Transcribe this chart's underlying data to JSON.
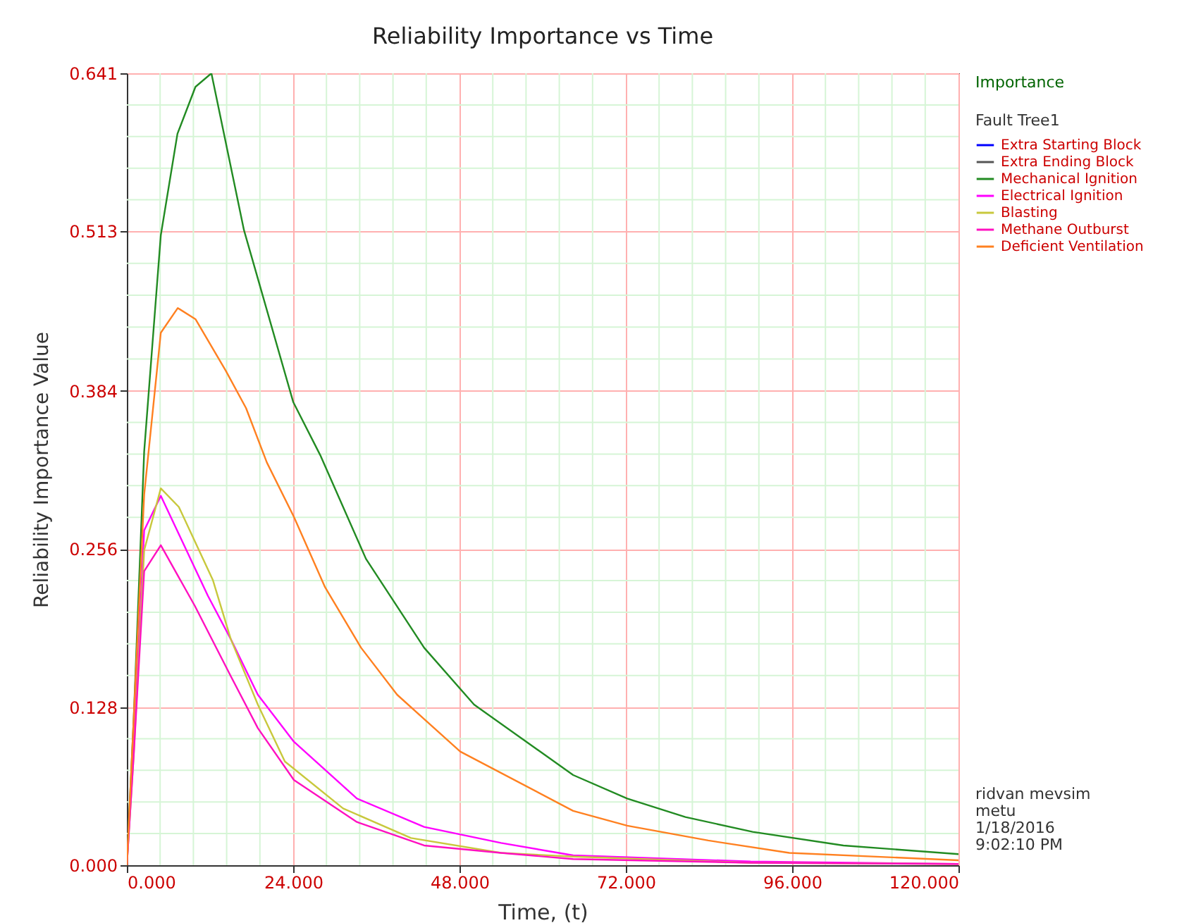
{
  "chart_data": {
    "type": "line",
    "title": "Reliability Importance vs Time",
    "xlabel": "Time, (t)",
    "ylabel": "Reliability Importance Value",
    "legend_title": "Fault Tree1",
    "legend": "right",
    "grid": true,
    "line_style": "solid",
    "annotations": [
      "Importance",
      "ridvan mevsim",
      "metu",
      "1/18/2016",
      "9:02:10 PM"
    ],
    "xlim": [
      0,
      120
    ],
    "xticks": [
      {
        "value": 0,
        "label": "0.000"
      },
      {
        "value": 24,
        "label": "24.000"
      },
      {
        "value": 48,
        "label": "48.000"
      },
      {
        "value": 72,
        "label": "72.000"
      },
      {
        "value": 96,
        "label": "96.000"
      },
      {
        "value": 120,
        "label": "120.000"
      }
    ],
    "ylim": [
      0,
      0.641
    ],
    "yticks": [
      {
        "value": 0,
        "label": "0.000"
      },
      {
        "value": 0.128,
        "label": "0.128"
      },
      {
        "value": 0.256,
        "label": "0.256"
      },
      {
        "value": 0.384,
        "label": "0.384"
      },
      {
        "value": 0.513,
        "label": "0.513"
      },
      {
        "value": 0.641,
        "label": "0.641"
      }
    ],
    "series": [
      {
        "name": "Extra Starting Block",
        "color": "#0000ff"
      },
      {
        "name": "Extra Ending Block",
        "color": "#555555"
      },
      {
        "name": "Mechanical Ignition",
        "color": "#228b22",
        "x": [
          0,
          1,
          2.5,
          4.9,
          7.3,
          9.9,
          12.2,
          16.9,
          24,
          27.9,
          34.5,
          42.9,
          50.1,
          64.4,
          72.2,
          80.6,
          90.3,
          103.4,
          120
        ],
        "values": [
          0,
          0.12,
          0.335,
          0.51,
          0.592,
          0.63,
          0.641,
          0.514,
          0.375,
          0.332,
          0.248,
          0.176,
          0.13,
          0.073,
          0.054,
          0.039,
          0.027,
          0.016,
          0.009
        ]
      },
      {
        "name": "Electrical Ignition",
        "color": "#ff00ff",
        "x": [
          0,
          1,
          2.5,
          4.9,
          11.7,
          15,
          18.9,
          24.1,
          33.2,
          42.9,
          54,
          64.4,
          90,
          120
        ],
        "values": [
          0,
          0.1,
          0.271,
          0.299,
          0.218,
          0.183,
          0.138,
          0.1,
          0.054,
          0.031,
          0.018,
          0.008,
          0.003,
          0.001
        ]
      },
      {
        "name": "Blasting",
        "color": "#c8c83c",
        "x": [
          0,
          1,
          2.5,
          4.9,
          7.5,
          12.4,
          15,
          18.9,
          22.8,
          31.2,
          41,
          54,
          64.4,
          90,
          120
        ],
        "values": [
          0,
          0.09,
          0.255,
          0.305,
          0.29,
          0.231,
          0.183,
          0.13,
          0.084,
          0.046,
          0.022,
          0.01,
          0.007,
          0.002,
          0.001
        ]
      },
      {
        "name": "Methane Outburst",
        "color": "#ff10c0",
        "x": [
          0,
          1,
          2.5,
          4.9,
          9.8,
          15,
          18.9,
          24.1,
          33.2,
          42.9,
          54,
          64.4,
          90,
          120
        ],
        "values": [
          0,
          0.09,
          0.238,
          0.259,
          0.21,
          0.153,
          0.111,
          0.069,
          0.035,
          0.016,
          0.01,
          0.005,
          0.002,
          0.001
        ]
      },
      {
        "name": "Deficient Ventilation",
        "color": "#ff8020",
        "x": [
          0,
          1,
          2.5,
          4.9,
          7.35,
          9.9,
          14.3,
          17.2,
          20.2,
          24.1,
          28.6,
          33.8,
          39,
          48.1,
          64.4,
          72.2,
          83.9,
          95.6,
          120
        ],
        "values": [
          0,
          0.12,
          0.3,
          0.431,
          0.451,
          0.442,
          0.4,
          0.37,
          0.326,
          0.282,
          0.225,
          0.176,
          0.138,
          0.092,
          0.044,
          0.032,
          0.02,
          0.01,
          0.004
        ]
      }
    ]
  }
}
